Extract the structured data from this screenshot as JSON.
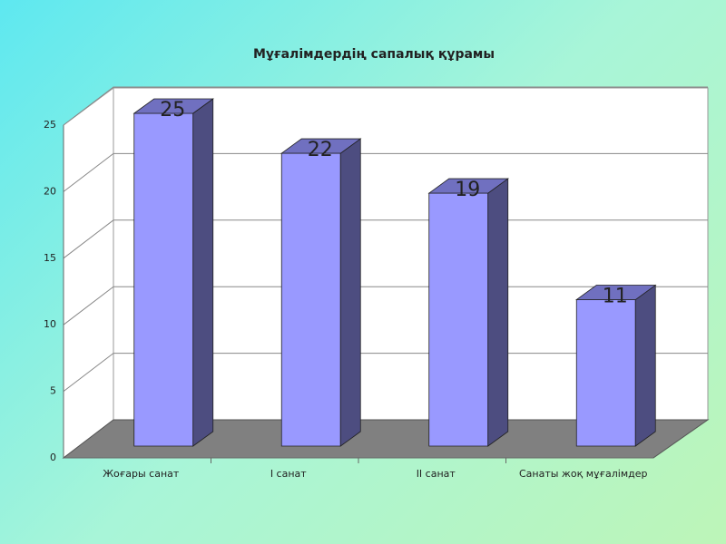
{
  "chart_data": {
    "type": "bar",
    "title": "Мұғалімдердің сапалық құрамы",
    "categories": [
      "Жоғары санат",
      "I санат",
      "II санат",
      "Санаты жоқ мұғалімдер"
    ],
    "values": [
      25,
      22,
      19,
      11
    ],
    "color": "#9999ff",
    "ylim": [
      0,
      25
    ],
    "yticks": [
      0,
      5,
      10,
      15,
      20,
      25
    ],
    "grid": true
  }
}
